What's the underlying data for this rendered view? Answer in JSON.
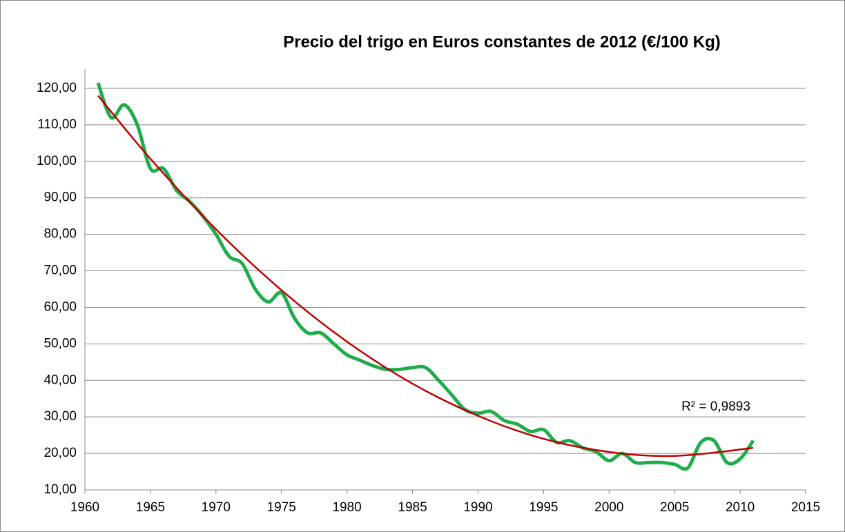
{
  "chart_data": {
    "type": "line",
    "title": "Precio del trigo en Euros constantes de 2012 (€/100 Kg)",
    "annotation": "R² = 0,9893",
    "series": [
      {
        "color": "#1fad4b",
        "x": [
          1961,
          1962,
          1963,
          1964,
          1965,
          1966,
          1967,
          1968,
          1969,
          1970,
          1971,
          1972,
          1973,
          1974,
          1975,
          1976,
          1977,
          1978,
          1979,
          1980,
          1981,
          1982,
          1983,
          1984,
          1985,
          1986,
          1987,
          1988,
          1989,
          1990,
          1991,
          1992,
          1993,
          1994,
          1995,
          1996,
          1997,
          1998,
          1999,
          2000,
          2001,
          2002,
          2003,
          2004,
          2005,
          2006,
          2007,
          2008,
          2009,
          2010,
          2011
        ],
        "values": [
          121.5,
          112,
          115.5,
          110,
          98,
          98,
          92,
          89,
          85,
          80,
          74,
          72,
          65,
          61.5,
          64,
          57,
          53,
          53,
          50,
          47,
          45.5,
          44,
          43,
          43,
          43.5,
          43.5,
          40,
          36,
          32,
          31,
          31.5,
          29,
          28,
          26,
          26.5,
          23,
          23.5,
          21.5,
          20.5,
          18,
          20,
          17.5,
          17.5,
          17.5,
          17,
          16,
          23,
          23.5,
          17.5,
          18.5,
          23.5
        ]
      },
      {
        "color": "#c00000",
        "x": [
          1961,
          1965,
          1970,
          1975,
          1980,
          1985,
          1990,
          1995,
          2000,
          2005,
          2011
        ],
        "values": [
          118,
          100.7,
          81.4,
          64.7,
          50.6,
          39.1,
          30.3,
          24.0,
          20.4,
          19.3,
          21.5
        ]
      }
    ],
    "xlim": [
      1960,
      2015
    ],
    "xticks": [
      1960,
      1965,
      1970,
      1975,
      1980,
      1985,
      1990,
      1995,
      2000,
      2005,
      2010,
      2015
    ],
    "ylim": [
      10,
      120
    ],
    "yticks": [
      {
        "value": 10,
        "label": "10,00"
      },
      {
        "value": 20,
        "label": "20,00"
      },
      {
        "value": 30,
        "label": "30,00"
      },
      {
        "value": 40,
        "label": "40,00"
      },
      {
        "value": 50,
        "label": "50,00"
      },
      {
        "value": 60,
        "label": "60,00"
      },
      {
        "value": 70,
        "label": "70,00"
      },
      {
        "value": 80,
        "label": "80,00"
      },
      {
        "value": 90,
        "label": "90,00"
      },
      {
        "value": 100,
        "label": "100,00"
      },
      {
        "value": 110,
        "label": "110,00"
      },
      {
        "value": 120,
        "label": "120,00"
      }
    ],
    "grid": true
  }
}
